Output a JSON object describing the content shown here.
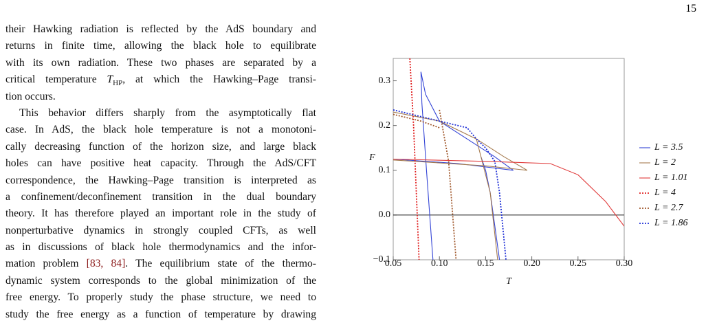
{
  "page_number": "15",
  "text": {
    "lines": [
      "their Hawking radiation is reflected by the AdS boundary and",
      "returns in finite time, allowing the black hole to equilibrate",
      "with its own radiation. These two phases are separated by a",
      [
        "critical temperature ",
        "T",
        "HP",
        ", at which the Hawking–Page transi-"
      ],
      "tion occurs.",
      "This behavior differs sharply from the asymptotically flat",
      "case. In AdS, the black hole temperature is not a monotoni-",
      "cally decreasing function of the horizon size, and large black",
      "holes can have positive heat capacity. Through the AdS/CFT",
      "correspondence, the Hawking–Page transition is interpreted as",
      "a confinement/deconfinement transition in the dual boundary",
      "theory. It has therefore played an important role in the study of",
      "nonperturbative dynamics in strongly coupled CFTs, as well",
      "as in discussions of black hole thermodynamics and the infor-",
      [
        "mation problem ",
        "[83, 84]",
        ". The equilibrium state of the thermo-"
      ],
      "dynamic system corresponds to the global minimization of the",
      "free energy. To properly study the phase structure, we need to",
      "study the free energy as a function of temperature by drawing"
    ]
  },
  "chart_data": {
    "type": "line",
    "x_label": "T",
    "y_label": "F",
    "xlim": [
      0.05,
      0.3
    ],
    "ylim": [
      -0.1,
      0.35
    ],
    "xticks": [
      0.05,
      {
        "value": 0.1,
        "label": "0.10"
      },
      0.15,
      {
        "value": 0.2,
        "label": "0.20"
      },
      0.25,
      {
        "value": 0.3,
        "label": "0.30"
      }
    ],
    "yticks": [
      {
        "value": -0.1,
        "label": "−0.1"
      },
      {
        "value": 0,
        "label": "0.0"
      },
      0.1,
      0.2,
      0.3
    ],
    "series": [
      {
        "name": "L = 3.5",
        "color": "#3344d6",
        "dashed": false,
        "x": [
          0.05,
          0.12,
          0.18,
          null,
          0.093,
          0.086,
          0.081,
          0.08,
          0.085,
          0.1,
          0.13,
          0.16,
          0.18,
          null,
          0.165,
          0.155,
          0.15,
          0.145
        ],
        "values": [
          0.125,
          0.115,
          0.1,
          null,
          -0.1,
          0.1,
          0.25,
          0.32,
          0.27,
          0.21,
          0.17,
          0.13,
          0.1,
          null,
          -0.1,
          0.05,
          0.1,
          0.13
        ]
      },
      {
        "name": "L = 2",
        "color": "#a57a4e",
        "dashed": false,
        "x": [
          0.05,
          0.15,
          0.195,
          null,
          0.05,
          0.1,
          0.14,
          0.17,
          0.195,
          null,
          0.163,
          0.155,
          0.145,
          0.14
        ],
        "values": [
          0.123,
          0.11,
          0.1,
          null,
          0.23,
          0.21,
          0.17,
          0.13,
          0.1,
          null,
          -0.1,
          0.05,
          0.13,
          0.17
        ]
      },
      {
        "name": "L = 1.01",
        "color": "#e03a3a",
        "dashed": false,
        "x": [
          0.05,
          0.15,
          0.22,
          0.25,
          0.28,
          0.3
        ],
        "values": [
          0.125,
          0.12,
          0.115,
          0.09,
          0.03,
          -0.025
        ]
      },
      {
        "name": "L = 4",
        "color": "#e01e1e",
        "dashed": true,
        "x": [
          0.068,
          0.072,
          0.075,
          0.078
        ],
        "values": [
          0.35,
          0.2,
          0.05,
          -0.1
        ]
      },
      {
        "name": "L = 2.7",
        "color": "#a0582c",
        "dashed": true,
        "x": [
          0.05,
          0.08,
          0.1,
          null,
          0.1,
          0.11,
          0.118
        ],
        "values": [
          0.225,
          0.21,
          0.195,
          null,
          0.235,
          0.12,
          -0.1
        ]
      },
      {
        "name": "L = 1.86",
        "color": "#1f2fd6",
        "dashed": true,
        "x": [
          0.05,
          0.1,
          0.13,
          0.14,
          0.15,
          0.16,
          0.165,
          0.172
        ],
        "values": [
          0.235,
          0.21,
          0.195,
          0.17,
          0.15,
          0.12,
          0.05,
          -0.1
        ]
      }
    ]
  }
}
